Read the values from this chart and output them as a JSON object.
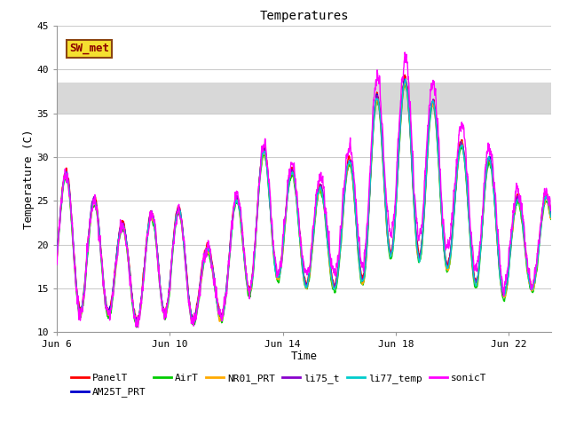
{
  "title": "Temperatures",
  "xlabel": "Time",
  "ylabel": "Temperature (C)",
  "ylim": [
    10,
    45
  ],
  "xlim_days": [
    0,
    17.5
  ],
  "x_ticks_days": [
    0,
    4,
    8,
    12,
    16
  ],
  "x_tick_labels": [
    "Jun 6",
    "Jun 10",
    "Jun 14",
    "Jun 18",
    "Jun 22"
  ],
  "y_ticks": [
    10,
    15,
    20,
    25,
    30,
    35,
    40,
    45
  ],
  "shaded_ymin": 35.0,
  "shaded_ymax": 38.5,
  "shaded_color": "#d8d8d8",
  "annotation_label": "SW_met",
  "annotation_bbox_facecolor": "#f5e030",
  "annotation_bbox_edgecolor": "#8B4513",
  "annotation_text_color": "#8B0000",
  "series_colors": {
    "PanelT": "#ff0000",
    "AM25T_PRT": "#0000cc",
    "AirT": "#00cc00",
    "NR01_PRT": "#ffaa00",
    "li75_t": "#8800cc",
    "li77_temp": "#00cccc",
    "sonicT": "#ff00ff"
  },
  "figure_bg": "#ffffff",
  "plot_bg": "#ffffff",
  "grid_color": "#cccccc",
  "font_size_ticks": 8,
  "font_size_labels": 9,
  "font_size_title": 10,
  "lw": 1.0
}
